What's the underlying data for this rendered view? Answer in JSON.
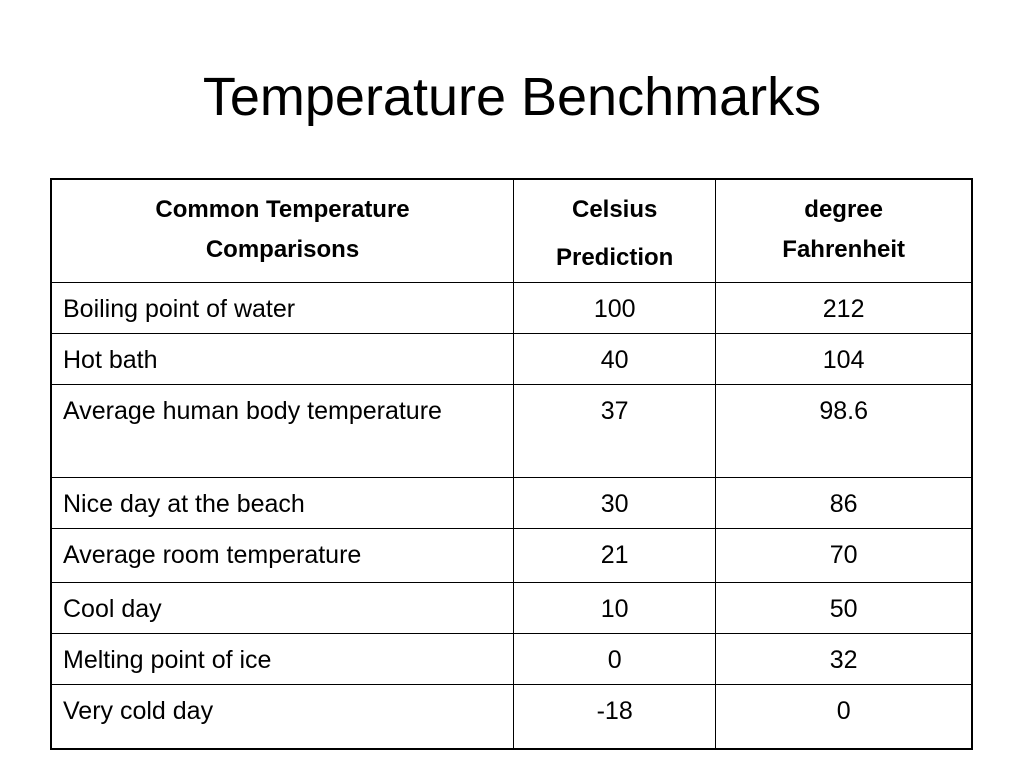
{
  "slide": {
    "title": "Temperature Benchmarks"
  },
  "table": {
    "headers": {
      "comparisons": [
        "Common Temperature",
        "Comparisons"
      ],
      "celsius": [
        "Celsius",
        "Prediction"
      ],
      "fahrenheit": [
        "degree",
        "Fahrenheit"
      ]
    },
    "rows": [
      {
        "comparison": "Boiling point of water",
        "celsius": "100",
        "fahrenheit": "212"
      },
      {
        "comparison": "Hot bath",
        "celsius": "40",
        "fahrenheit": "104"
      },
      {
        "comparison": "Average human body temperature",
        "celsius": "37",
        "fahrenheit": "98.6"
      },
      {
        "comparison": "Nice day at the beach",
        "celsius": "30",
        "fahrenheit": "86"
      },
      {
        "comparison": "Average room temperature",
        "celsius": "21",
        "fahrenheit": "70"
      },
      {
        "comparison": "Cool day",
        "celsius": "10",
        "fahrenheit": "50"
      },
      {
        "comparison": "Melting point of ice",
        "celsius": "0",
        "fahrenheit": "32"
      },
      {
        "comparison": "Very cold day",
        "celsius": "-18",
        "fahrenheit": "0"
      }
    ]
  }
}
